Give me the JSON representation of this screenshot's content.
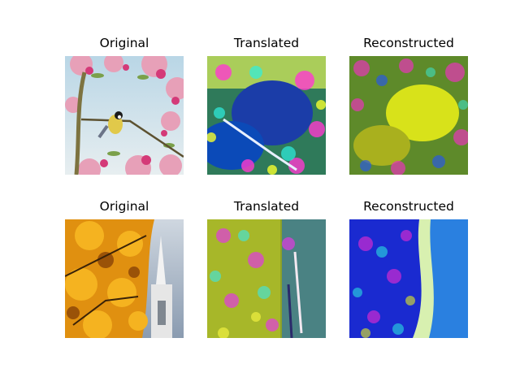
{
  "rows": [
    {
      "original": "Original",
      "translated": "Translated",
      "reconstructed": "Reconstructed"
    },
    {
      "original": "Original",
      "translated": "Translated",
      "reconstructed": "Reconstructed"
    }
  ]
}
